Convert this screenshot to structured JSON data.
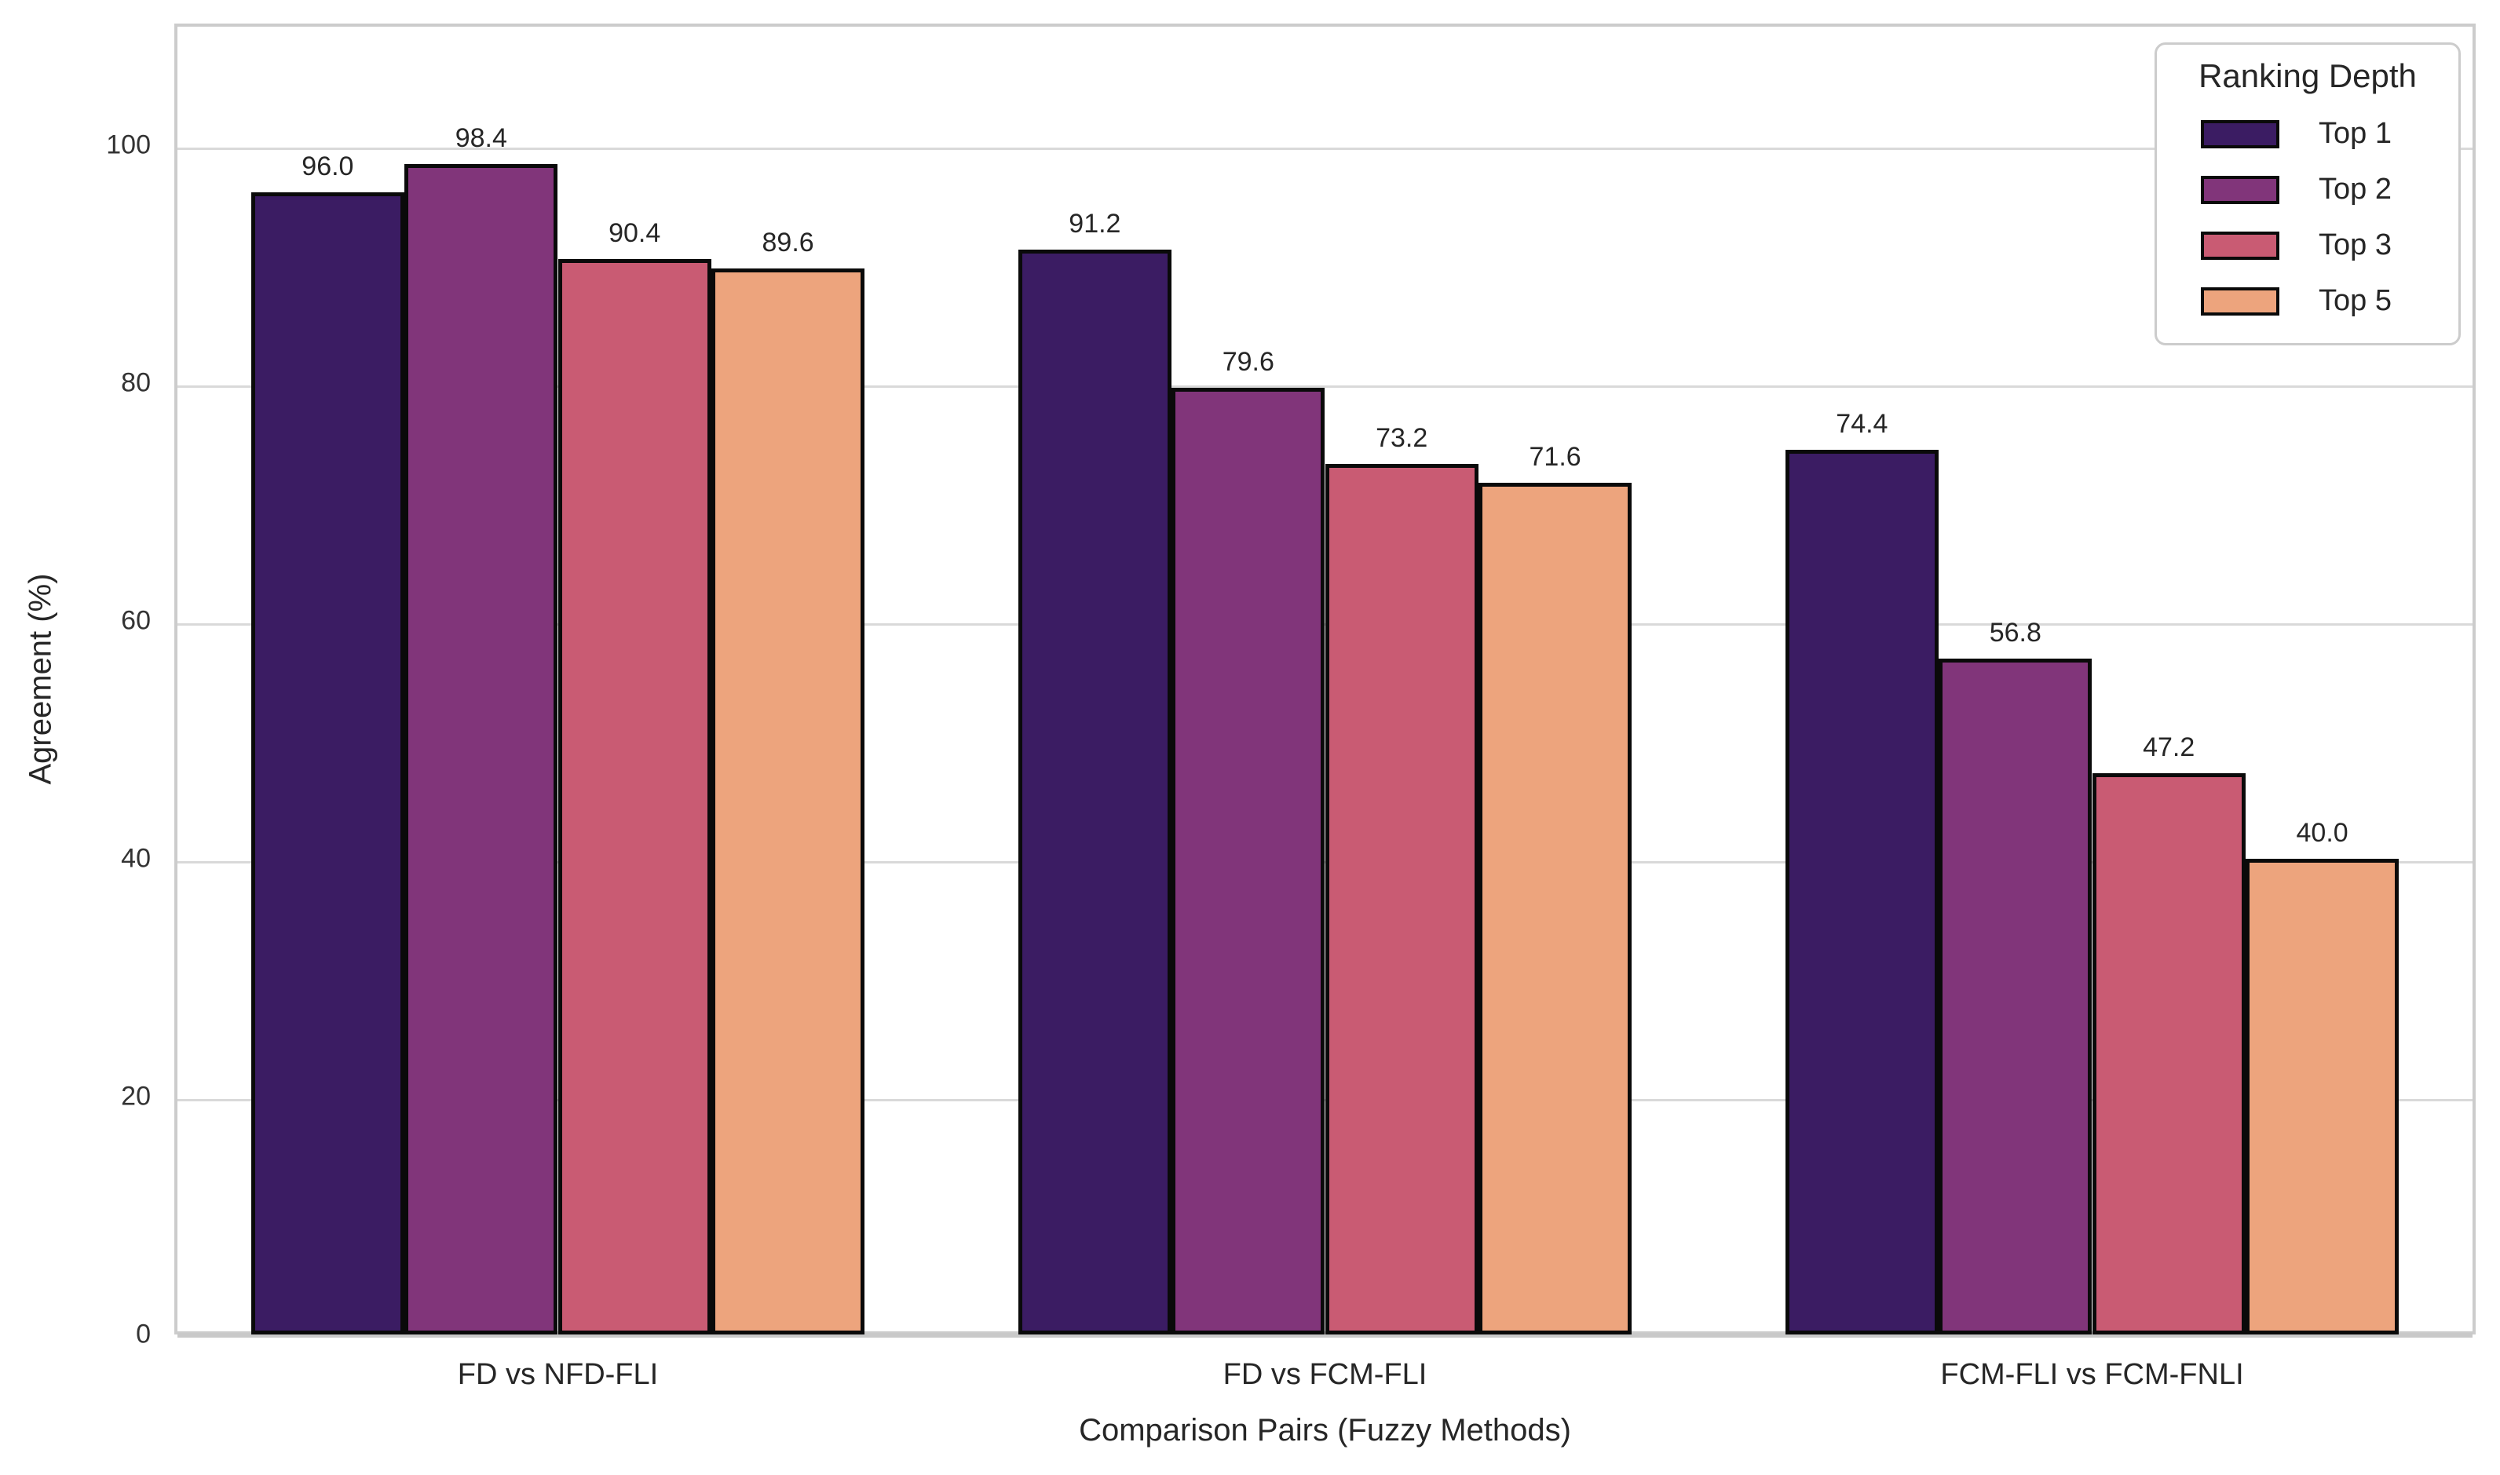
{
  "figure": {
    "background": "#ffffff",
    "text_color": "#262626",
    "grid_color": "#d9d9d9",
    "spine_color": "#cccccc",
    "bar_edge_color": "#0a0a0a"
  },
  "chart_data": {
    "type": "bar",
    "title": "",
    "xlabel": "Comparison Pairs (Fuzzy Methods)",
    "ylabel": "Agreement (%)",
    "categories": [
      "FD vs NFD-FLI",
      "FD vs FCM-FLI",
      "FCM-FLI vs FCM-FNLI"
    ],
    "series": [
      {
        "name": "Top 1",
        "color": "#3b1c63",
        "values": [
          96.0,
          91.2,
          74.4
        ]
      },
      {
        "name": "Top 2",
        "color": "#81357a",
        "values": [
          98.4,
          79.6,
          56.8
        ]
      },
      {
        "name": "Top 3",
        "color": "#c95b73",
        "values": [
          90.4,
          73.2,
          47.2
        ]
      },
      {
        "name": "Top 5",
        "color": "#eda47d",
        "values": [
          89.6,
          71.6,
          40.0
        ]
      }
    ],
    "y_ticks": [
      0,
      20,
      40,
      60,
      80,
      100
    ],
    "ylim": [
      0,
      110.2
    ],
    "value_label_decimals": 1,
    "grid": true,
    "bar_group_fraction": 0.8,
    "legend": {
      "title": "Ranking Depth",
      "position": "upper-right"
    }
  }
}
